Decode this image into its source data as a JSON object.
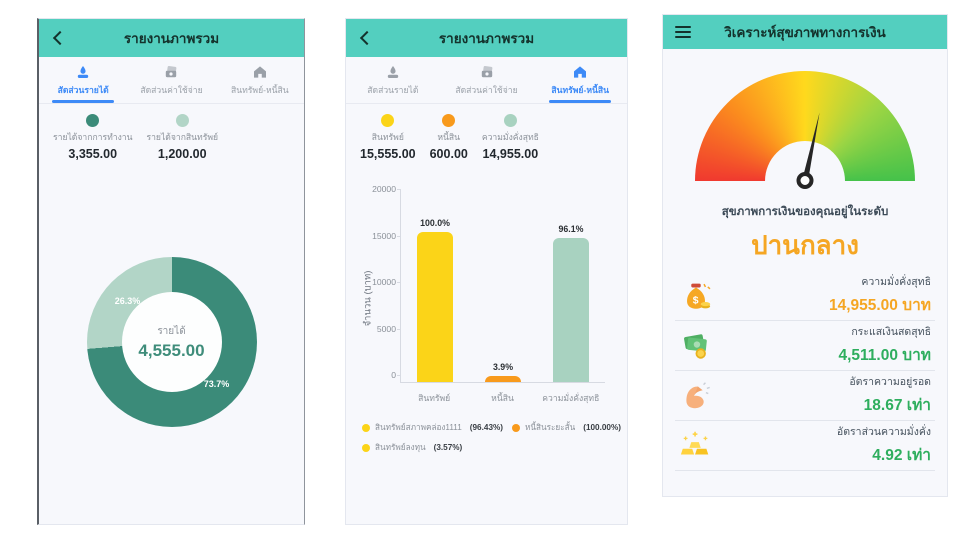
{
  "colors": {
    "header_teal": "#53cfbf",
    "panel_bg": "#f7f8fc",
    "active_tab_blue": "#3d8af7",
    "inactive_tab_gray": "#9aa0a8",
    "orange_accent": "#f5a623",
    "green_accent": "#2eae5e"
  },
  "screens": [
    {
      "header": {
        "title": "รายงานภาพรวม"
      },
      "tabs": [
        {
          "label": "สัดส่วนรายได้",
          "active": true
        },
        {
          "label": "สัดส่วนค่าใช้จ่าย",
          "active": false
        },
        {
          "label": "สินทรัพย์-หนี้สิน",
          "active": false
        }
      ],
      "legend": [
        {
          "label": "รายได้จากการทำงาน",
          "value": "3,355.00",
          "color": "#3b8b79"
        },
        {
          "label": "รายได้จากสินทรัพย์",
          "value": "1,200.00",
          "color": "#b2d5c7"
        }
      ]
    },
    {
      "header": {
        "title": "รายงานภาพรวม"
      },
      "tabs": [
        {
          "label": "สัดส่วนรายได้",
          "active": false
        },
        {
          "label": "สัดส่วนค่าใช้จ่าย",
          "active": false
        },
        {
          "label": "สินทรัพย์-หนี้สิน",
          "active": true
        }
      ],
      "legend": [
        {
          "label": "สินทรัพย์",
          "value": "15,555.00",
          "color": "#fbd418"
        },
        {
          "label": "หนี้สิน",
          "value": "600.00",
          "color": "#f89a1c"
        },
        {
          "label": "ความมั่งคั่งสุทธิ",
          "value": "14,955.00",
          "color": "#a8d2c0"
        }
      ],
      "bar_legend": [
        {
          "name": "สินทรัพย์สภาพคล่อง1111",
          "pct": "(96.43%)",
          "color": "#fbd418"
        },
        {
          "name": "หนี้สินระยะสั้น",
          "pct": "(100.00%)",
          "color": "#f89a1c"
        },
        {
          "name": "สินทรัพย์ลงทุน",
          "pct": "(3.57%)",
          "color": "#fbd418"
        }
      ]
    },
    {
      "header": {
        "title": "วิเคราะห์สุขภาพทางการเงิน"
      },
      "gauge_caption": "สุขภาพการเงินของคุณอยู่ในระดับ",
      "level_label": "ปานกลาง",
      "metrics": [
        {
          "label": "ความมั่งคั่งสุทธิ",
          "value": "14,955.00 บาท",
          "value_color": "#f5a623",
          "icon": "money-bag-icon"
        },
        {
          "label": "กระแสเงินสดสุทธิ",
          "value": "4,511.00 บาท",
          "value_color": "#2eae5e",
          "icon": "banknotes-icon"
        },
        {
          "label": "อัตราความอยู่รอด",
          "value": "18.67 เท่า",
          "value_color": "#2eae5e",
          "icon": "muscle-icon"
        },
        {
          "label": "อัตราส่วนความมั่งคั่ง",
          "value": "4.92 เท่า",
          "value_color": "#2eae5e",
          "icon": "gold-bars-icon"
        }
      ]
    }
  ],
  "chart_data": [
    {
      "type": "pie",
      "donut": true,
      "title": "รายได้",
      "center_label": "รายได้",
      "center_value": "4,555.00",
      "slices": [
        {
          "label": "รายได้จากการทำงาน",
          "value": 3355.0,
          "pct": 73.7,
          "pct_label": "73.7%",
          "color": "#3b8b79"
        },
        {
          "label": "รายได้จากสินทรัพย์",
          "value": 1200.0,
          "pct": 26.3,
          "pct_label": "26.3%",
          "color": "#b2d5c7"
        }
      ],
      "legend_position": "top"
    },
    {
      "type": "bar",
      "categories": [
        "สินทรัพย์",
        "หนี้สิน",
        "ความมั่งคั่งสุทธิ"
      ],
      "values": [
        15555,
        600,
        14955
      ],
      "bar_labels": [
        "100.0%",
        "3.9%",
        "96.1%"
      ],
      "colors": [
        "#fbd418",
        "#f89a1c",
        "#a8d2c0"
      ],
      "title": "",
      "xlabel": "",
      "ylabel": "จำนวน (บาท)",
      "ylim": [
        0,
        20000
      ],
      "ytick_labels": [
        "20000",
        "15000",
        "10000",
        "5000",
        "0"
      ],
      "grid": false,
      "legend_position": "bottom"
    },
    {
      "type": "gauge",
      "gradient": [
        "#f0392f",
        "#fb8c1e",
        "#ffd91d",
        "#9bd544",
        "#45c24a"
      ],
      "needle_deg_from_vertical": 12,
      "reading_label": "ปานกลาง"
    }
  ]
}
